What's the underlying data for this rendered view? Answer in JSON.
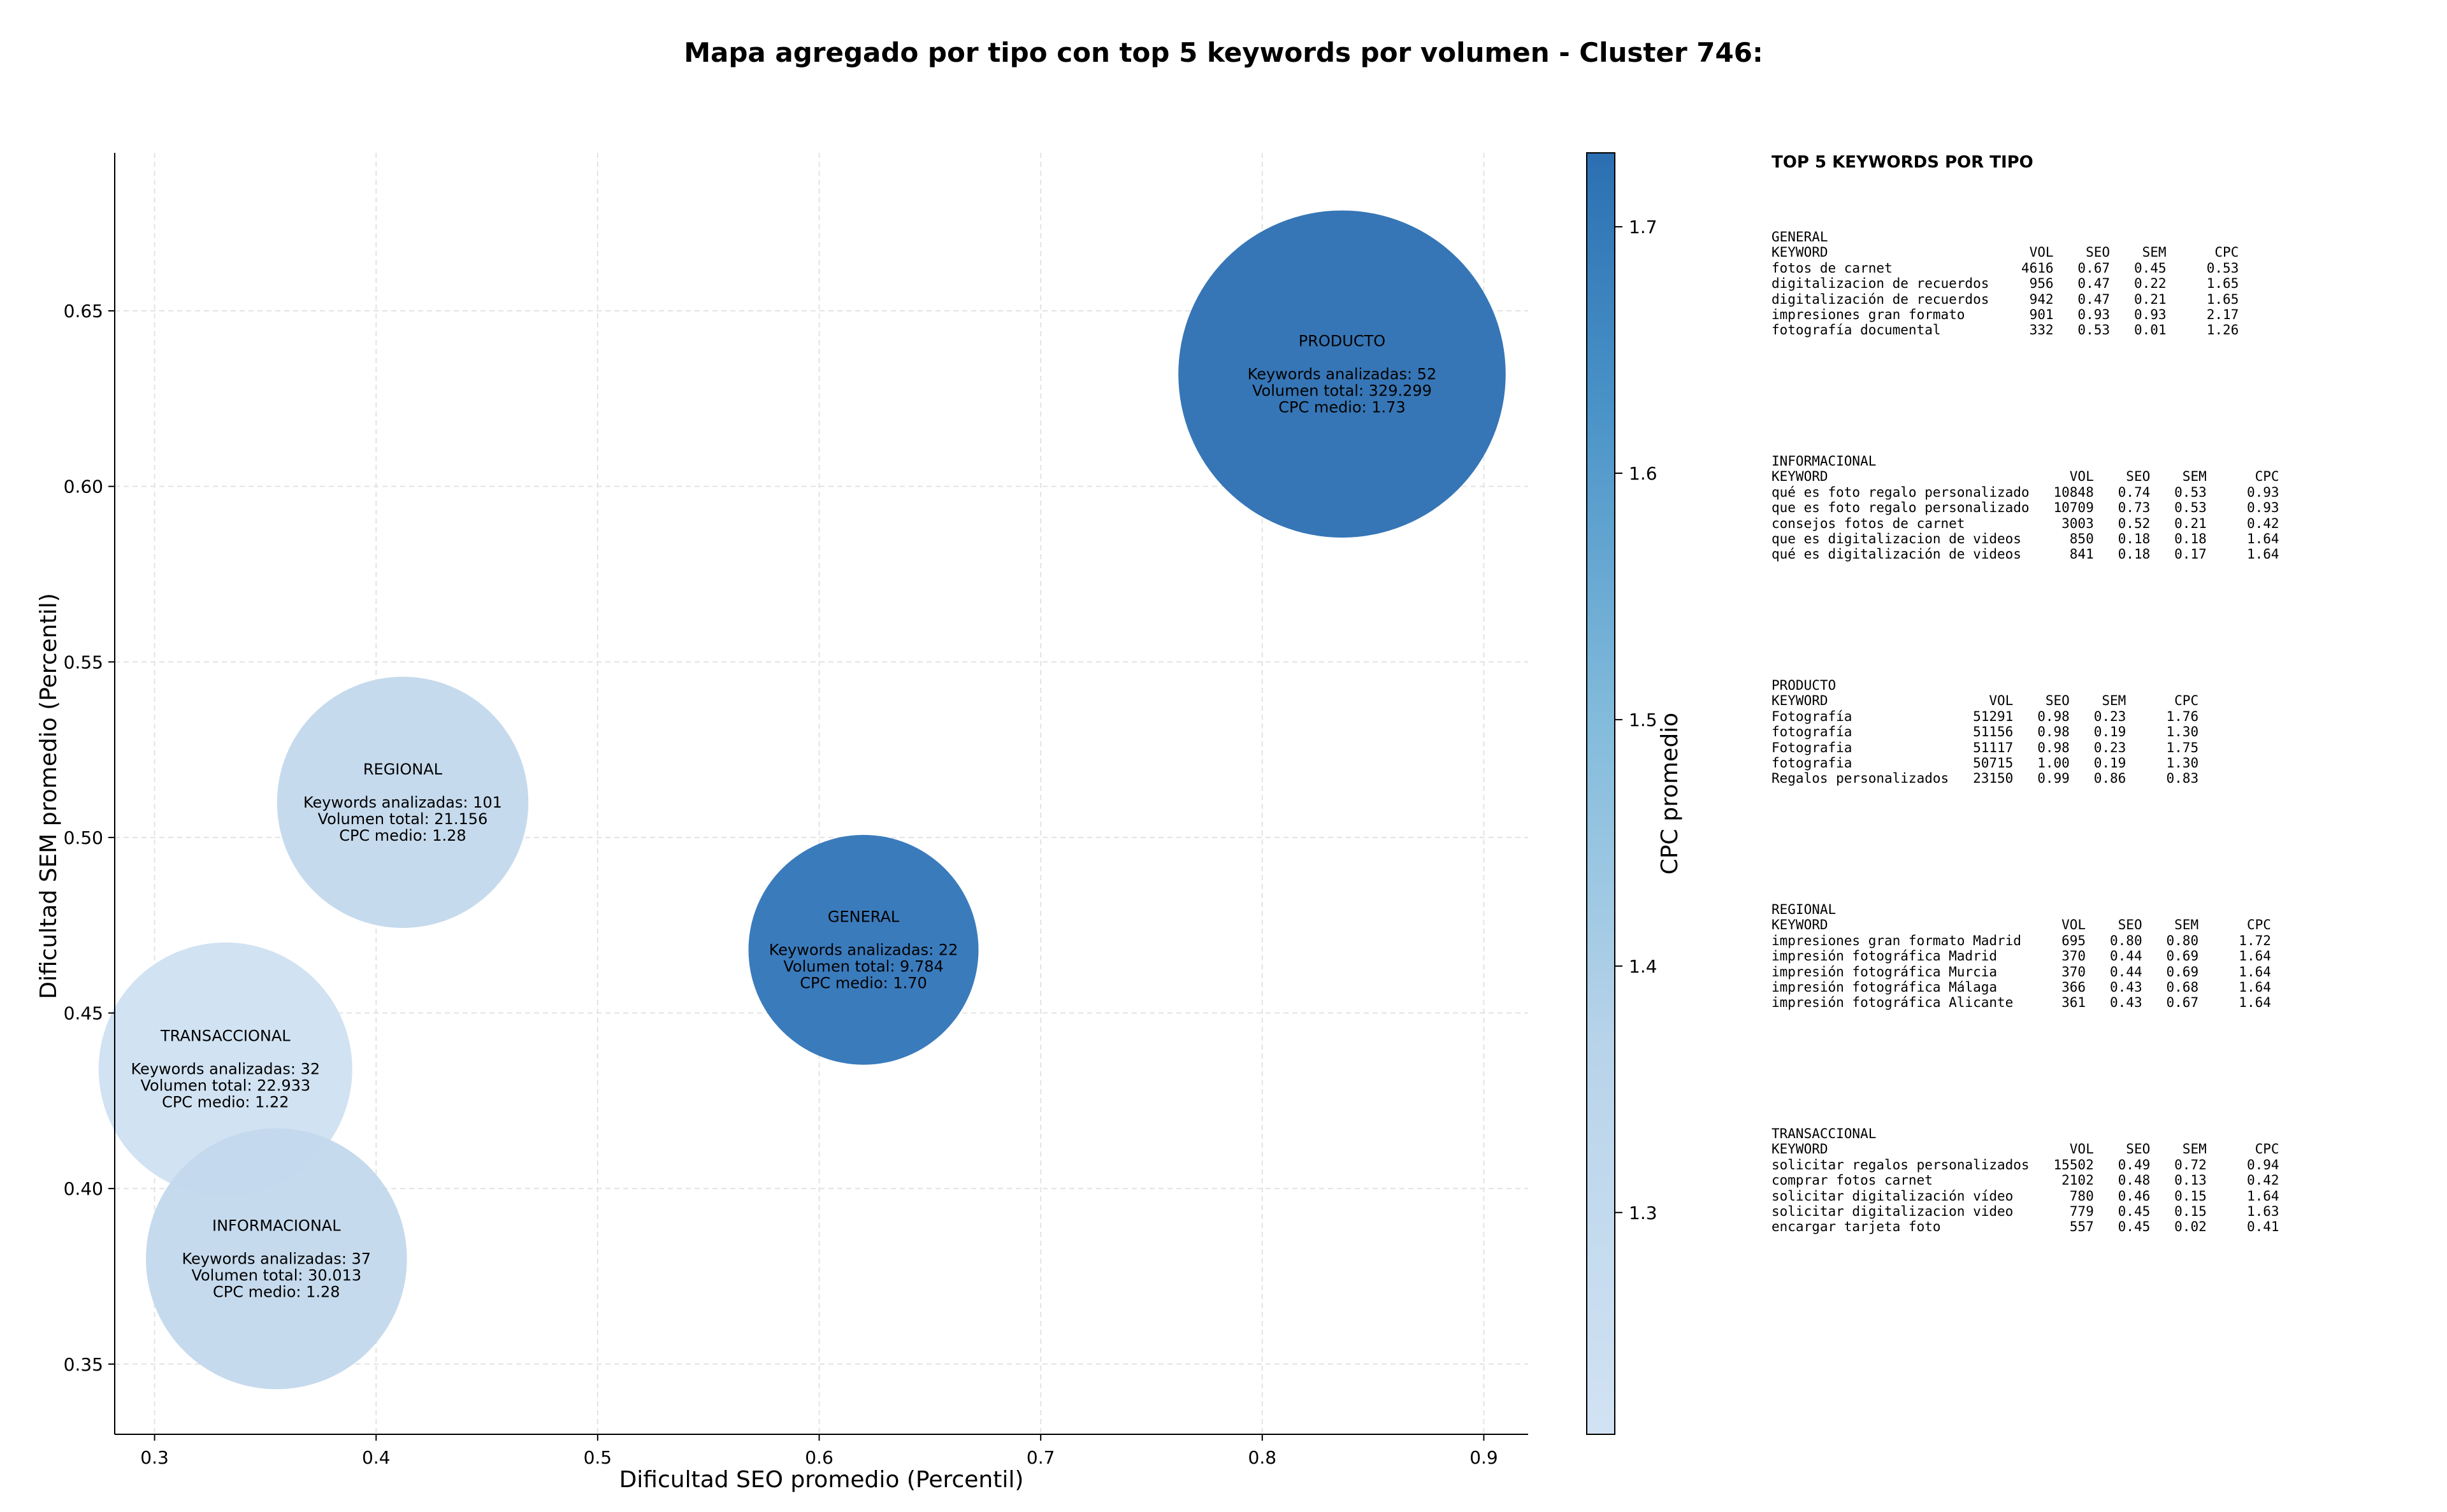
{
  "chart_data": {
    "type": "scatter",
    "title": "Mapa agregado por tipo con top 5 keywords por volumen - Cluster 746:",
    "xlabel": "Dificultad SEO promedio (Percentil)",
    "ylabel": "Dificultad SEM promedio (Percentil)",
    "colorbar_label": "CPC promedio",
    "xlim": [
      0.282,
      0.92
    ],
    "ylim": [
      0.33,
      0.695
    ],
    "xticks": [
      "0.3",
      "0.4",
      "0.5",
      "0.6",
      "0.7",
      "0.8",
      "0.9"
    ],
    "yticks": [
      "0.35",
      "0.40",
      "0.45",
      "0.50",
      "0.55",
      "0.60",
      "0.65"
    ],
    "colorbar_range": [
      1.21,
      1.73
    ],
    "colorbar_ticks": [
      "1.3",
      "1.4",
      "1.5",
      "1.6",
      "1.7"
    ],
    "grid": true,
    "points": [
      {
        "label": "PRODUCTO",
        "x": 0.836,
        "y": 0.632,
        "keywords_text": "Keywords analizadas: 52",
        "volume_text": "Volumen total: 329.299",
        "cpc_text": "CPC medio: 1.73",
        "volume": 329299,
        "cpc": 1.73,
        "color": "#2b6fb2"
      },
      {
        "label": "GENERAL",
        "x": 0.62,
        "y": 0.468,
        "keywords_text": "Keywords analizadas: 22",
        "volume_text": "Volumen total: 9.784",
        "cpc_text": "CPC medio: 1.70",
        "volume": 9784,
        "cpc": 1.7,
        "color": "#2f74b8"
      },
      {
        "label": "REGIONAL",
        "x": 0.412,
        "y": 0.51,
        "keywords_text": "Keywords analizadas: 101",
        "volume_text": "Volumen total: 21.156",
        "cpc_text": "CPC medio: 1.28",
        "volume": 21156,
        "cpc": 1.28,
        "color": "#c3d8ec"
      },
      {
        "label": "TRANSACCIONAL",
        "x": 0.332,
        "y": 0.434,
        "keywords_text": "Keywords analizadas: 32",
        "volume_text": "Volumen total: 22.933",
        "cpc_text": "CPC medio: 1.22",
        "volume": 22933,
        "cpc": 1.22,
        "color": "#cfe0f1"
      },
      {
        "label": "INFORMACIONAL",
        "x": 0.355,
        "y": 0.38,
        "keywords_text": "Keywords analizadas: 37",
        "volume_text": "Volumen total: 30.013",
        "cpc_text": "CPC medio: 1.28",
        "volume": 30013,
        "cpc": 1.28,
        "color": "#c3d8ec"
      }
    ]
  },
  "side_panel": {
    "title": "TOP 5 KEYWORDS POR TIPO",
    "blocks": [
      {
        "name": "GENERAL",
        "text": "GENERAL\nKEYWORD                         VOL    SEO    SEM      CPC\nfotos de carnet                4616   0.67   0.45     0.53\ndigitalizacion de recuerdos     956   0.47   0.22     1.65\ndigitalización de recuerdos     942   0.47   0.21     1.65\nimpresiones gran formato        901   0.93   0.93     2.17\nfotografía documental           332   0.53   0.01     1.26"
      },
      {
        "name": "INFORMACIONAL",
        "text": "INFORMACIONAL\nKEYWORD                              VOL    SEO    SEM      CPC\nqué es foto regalo personalizado   10848   0.74   0.53     0.93\nque es foto regalo personalizado   10709   0.73   0.53     0.93\nconsejos fotos de carnet            3003   0.52   0.21     0.42\nque es digitalizacion de videos      850   0.18   0.18     1.64\nqué es digitalización de videos      841   0.18   0.17     1.64"
      },
      {
        "name": "PRODUCTO",
        "text": "PRODUCTO\nKEYWORD                    VOL    SEO    SEM      CPC\nFotografía               51291   0.98   0.23     1.76\nfotografía               51156   0.98   0.19     1.30\nFotografia               51117   0.98   0.23     1.75\nfotografia               50715   1.00   0.19     1.30\nRegalos personalizados   23150   0.99   0.86     0.83"
      },
      {
        "name": "REGIONAL",
        "text": "REGIONAL\nKEYWORD                             VOL    SEO    SEM      CPC\nimpresiones gran formato Madrid     695   0.80   0.80     1.72\nimpresión fotográfica Madrid        370   0.44   0.69     1.64\nimpresión fotográfica Murcia        370   0.44   0.69     1.64\nimpresión fotográfica Málaga        366   0.43   0.68     1.64\nimpresión fotográfica Alicante      361   0.43   0.67     1.64"
      },
      {
        "name": "TRANSACCIONAL",
        "text": "TRANSACCIONAL\nKEYWORD                              VOL    SEO    SEM      CPC\nsolicitar regalos personalizados   15502   0.49   0.72     0.94\ncomprar fotos carnet                2102   0.48   0.13     0.42\nsolicitar digitalización vídeo       780   0.46   0.15     1.64\nsolicitar digitalizacion video       779   0.45   0.15     1.63\nencargar tarjeta foto                557   0.45   0.02     0.41"
      }
    ]
  }
}
